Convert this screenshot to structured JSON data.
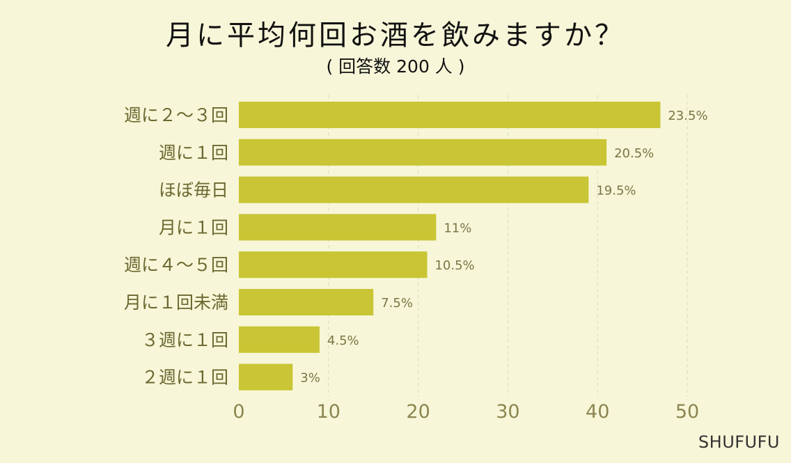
{
  "title": "月に平均何回お酒を飲みますか？",
  "subtitle": "( 回答数 200 人 )",
  "watermark": "SHUFUFU",
  "colors": {
    "background": "#f7f6d8",
    "bar": "#c9c534",
    "category_text": "#6b6730",
    "value_text": "#7a7545",
    "tick_text": "#8c8550",
    "grid": "#e2dfc4"
  },
  "chart_data": {
    "type": "bar",
    "orientation": "horizontal",
    "categories": [
      "週に２～３回",
      "週に１回",
      "ほぼ毎日",
      "月に１回",
      "週に４～５回",
      "月に１回未満",
      "３週に１回",
      "２週に１回"
    ],
    "values": [
      47,
      41,
      39,
      22,
      21,
      15,
      9,
      6
    ],
    "value_labels": [
      "23.5%",
      "20.5%",
      "19.5%",
      "11%",
      "10.5%",
      "7.5%",
      "4.5%",
      "3%"
    ],
    "xlim": [
      0,
      50
    ],
    "xticks": [
      0,
      10,
      20,
      30,
      40,
      50
    ],
    "xtick_labels": [
      "0",
      "10",
      "20",
      "30",
      "40",
      "50"
    ],
    "grid": "vertical dashed",
    "xlabel": "",
    "ylabel": ""
  }
}
